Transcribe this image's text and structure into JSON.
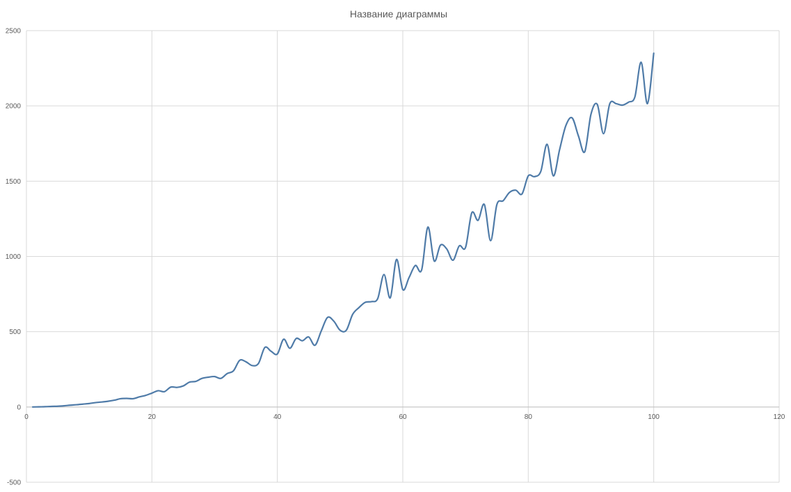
{
  "chart_data": {
    "type": "scatter",
    "title": "Название диаграммы",
    "xlabel": "",
    "ylabel": "",
    "xlim": [
      0,
      120
    ],
    "ylim": [
      -500,
      2500
    ],
    "x_ticks": [
      0,
      20,
      40,
      60,
      80,
      100,
      120
    ],
    "y_ticks": [
      -500,
      0,
      500,
      1000,
      1500,
      2000,
      2500
    ],
    "grid": true,
    "legend": "none",
    "line_color": "#4f7ba8",
    "grid_color": "#d9d9d9",
    "series": [
      {
        "x": [
          1,
          2,
          3,
          4,
          5,
          6,
          7,
          8,
          9,
          10,
          11,
          12,
          13,
          14,
          15,
          16,
          17,
          18,
          19,
          20,
          21,
          22,
          23,
          24,
          25,
          26,
          27,
          28,
          29,
          30,
          31,
          32,
          33,
          34,
          35,
          36,
          37,
          38,
          39,
          40,
          41,
          42,
          43,
          44,
          45,
          46,
          47,
          48,
          49,
          50,
          51,
          52,
          53,
          54,
          55,
          56,
          57,
          58,
          59,
          60,
          61,
          62,
          63,
          64,
          65,
          66,
          67,
          68,
          69,
          70,
          71,
          72,
          73,
          74,
          75,
          76,
          77,
          78,
          79,
          80,
          81,
          82,
          83,
          84,
          85,
          86,
          87,
          88,
          89,
          90,
          91,
          92,
          93,
          94,
          95,
          96,
          97,
          98,
          99,
          100
        ],
        "y": [
          0,
          1,
          2,
          4,
          5,
          8,
          12,
          15,
          19,
          23,
          29,
          33,
          38,
          45,
          55,
          57,
          55,
          67,
          77,
          92,
          108,
          102,
          132,
          130,
          140,
          165,
          170,
          190,
          198,
          202,
          190,
          222,
          240,
          310,
          300,
          275,
          290,
          395,
          370,
          352,
          450,
          390,
          455,
          440,
          465,
          410,
          505,
          595,
          570,
          510,
          510,
          615,
          660,
          695,
          700,
          720,
          880,
          725,
          980,
          780,
          860,
          940,
          910,
          1195,
          970,
          1075,
          1050,
          975,
          1070,
          1060,
          1290,
          1240,
          1345,
          1105,
          1345,
          1370,
          1425,
          1440,
          1415,
          1535,
          1530,
          1565,
          1745,
          1535,
          1710,
          1870,
          1920,
          1800,
          1695,
          1945,
          2010,
          1815,
          2015,
          2015,
          2005,
          2025,
          2060,
          2290,
          2015,
          2350
        ]
      }
    ]
  }
}
